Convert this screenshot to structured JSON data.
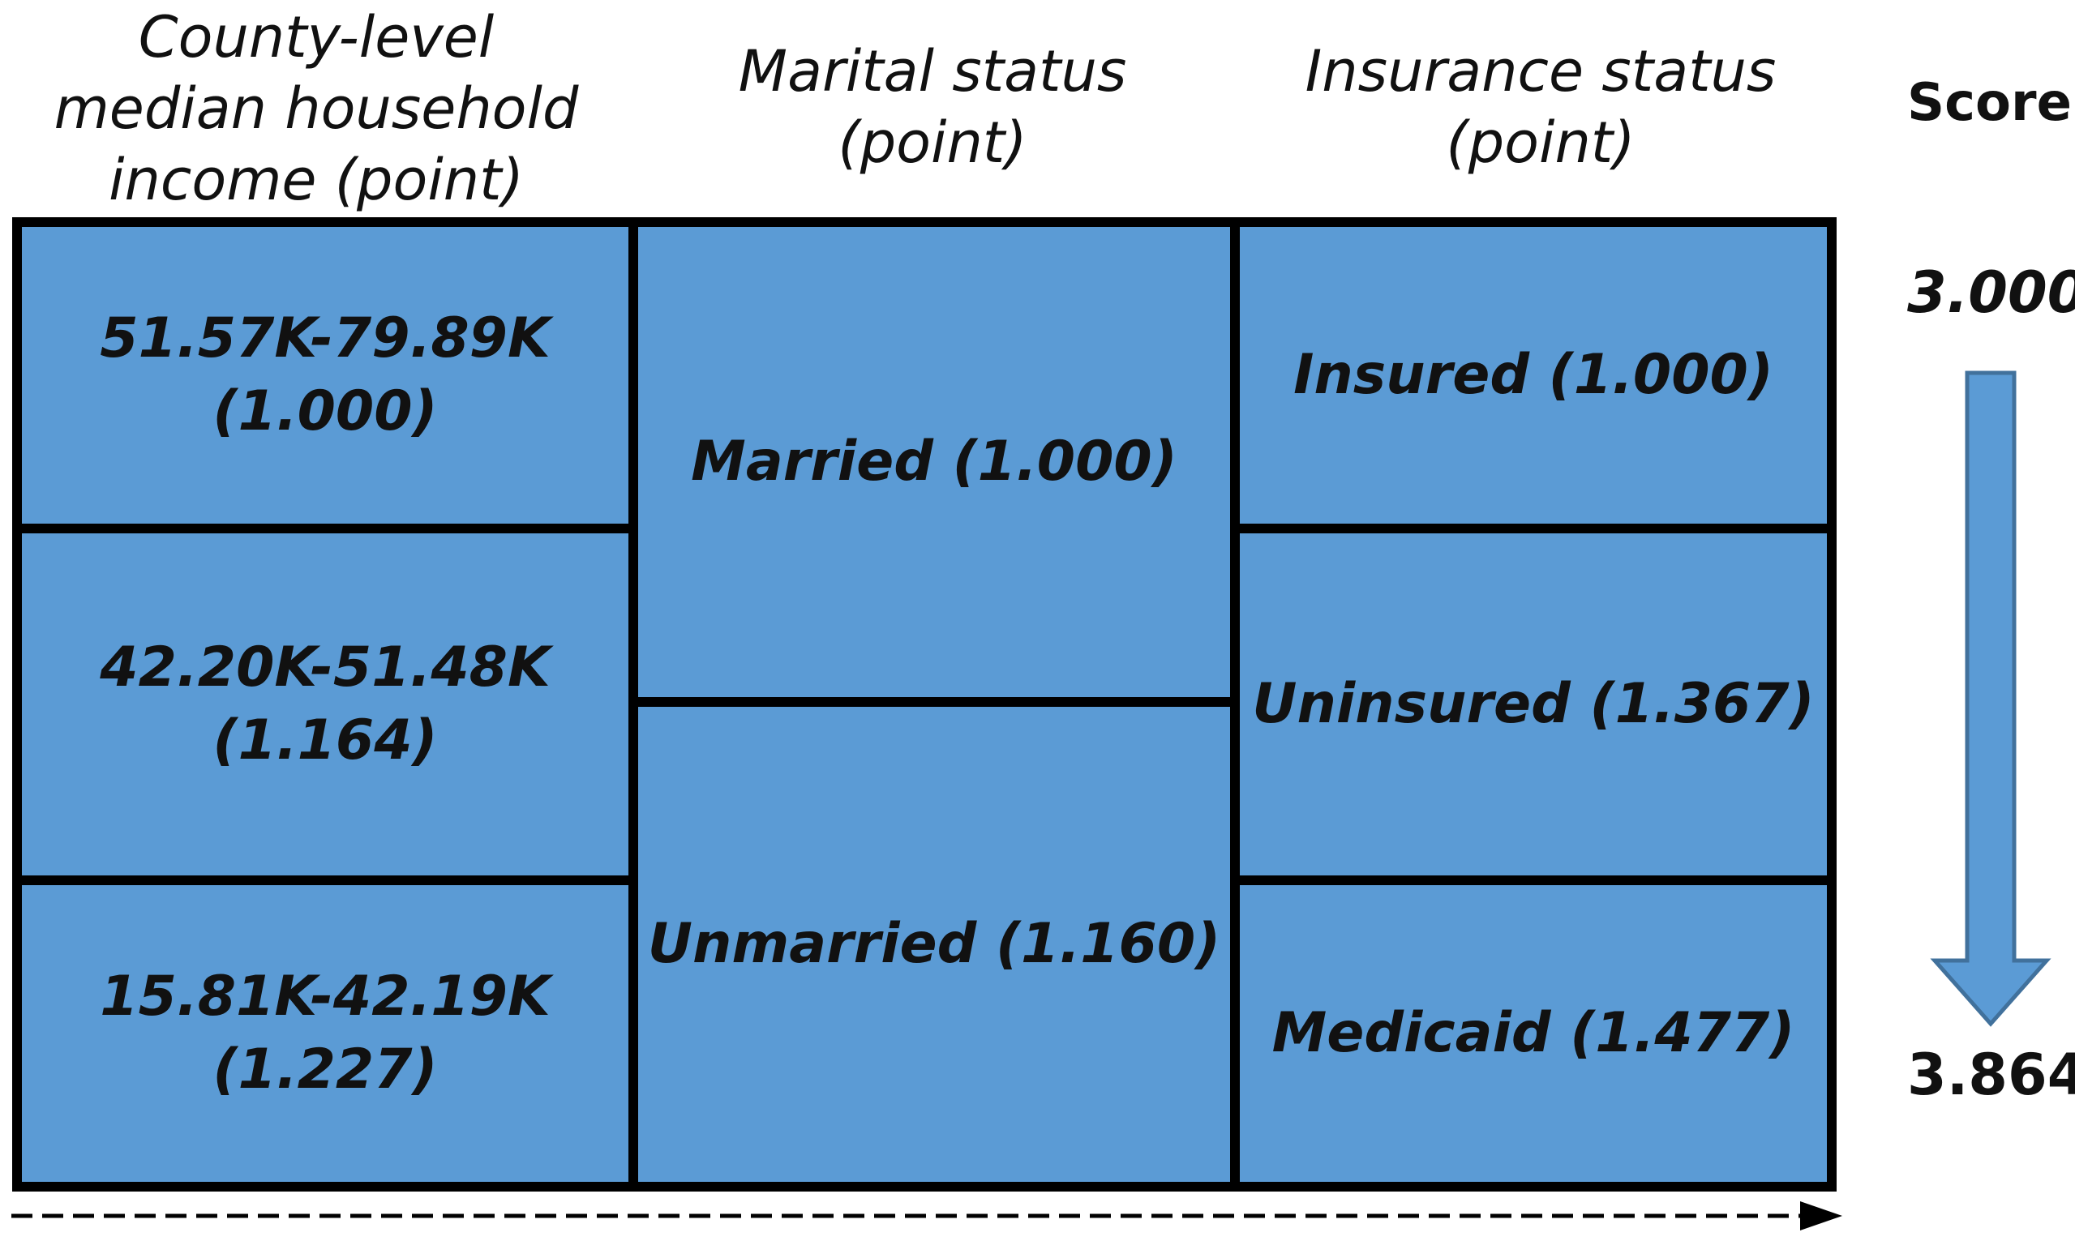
{
  "headers": {
    "income": "County-level\nmedian household\nincome (point)",
    "marital": "Marital status\n(point)",
    "insurance": "Insurance status\n(point)"
  },
  "income_cells": [
    "51.57K-79.89K\n(1.000)",
    "42.20K-51.48K\n(1.164)",
    "15.81K-42.19K\n(1.227)"
  ],
  "marital_cells": [
    "Married (1.000)",
    "Unmarried (1.160)"
  ],
  "insurance_cells": [
    "Insured (1.000)",
    "Uninsured (1.367)",
    "Medicaid (1.477)"
  ],
  "score": {
    "title": "Score",
    "top": "3.000",
    "bottom": "3.864"
  },
  "colors": {
    "cell_fill": "#5b9bd5",
    "arrow_fill": "#5b9bd5",
    "border": "#000000"
  }
}
